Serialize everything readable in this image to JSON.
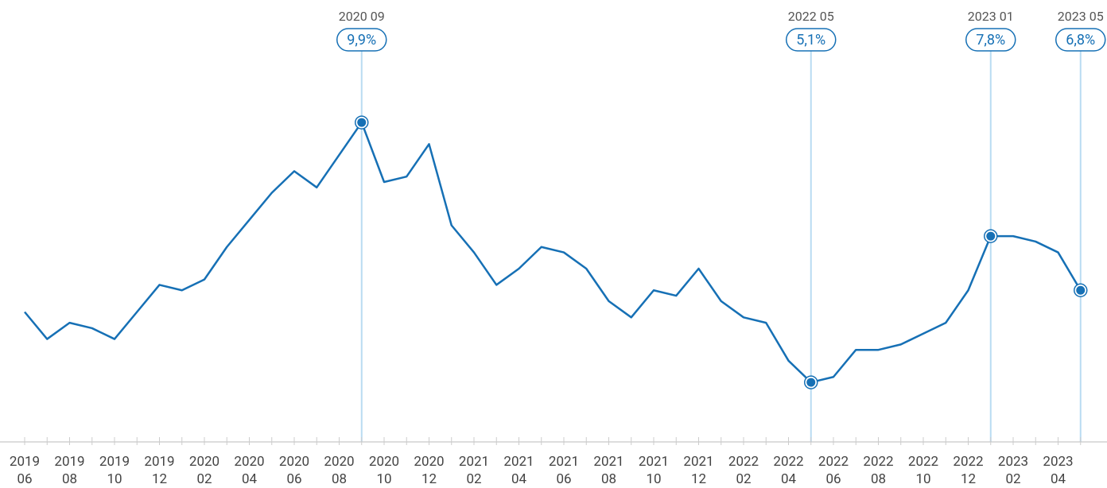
{
  "chart_data": {
    "type": "line",
    "categories": [
      "2019 06",
      null,
      "2019 08",
      null,
      "2019 10",
      null,
      "2019 12",
      null,
      "2020 02",
      null,
      "2020 04",
      null,
      "2020 06",
      null,
      "2020 08",
      null,
      "2020 10",
      null,
      "2020 12",
      null,
      "2021 02",
      null,
      "2021 04",
      null,
      "2021 06",
      null,
      "2021 08",
      null,
      "2021 10",
      null,
      "2021 12",
      null,
      "2022 02",
      null,
      "2022 04",
      null,
      "2022 06",
      null,
      "2022 08",
      null,
      "2022 10",
      null,
      "2022 12",
      null,
      "2023 02",
      null,
      "2023 04",
      null
    ],
    "highlight_dates": [
      null,
      null,
      null,
      null,
      null,
      null,
      null,
      null,
      null,
      null,
      null,
      null,
      null,
      null,
      null,
      "2020 09",
      null,
      null,
      null,
      null,
      null,
      null,
      null,
      null,
      null,
      null,
      null,
      null,
      null,
      null,
      null,
      null,
      null,
      null,
      null,
      "2022 05",
      null,
      null,
      null,
      null,
      null,
      null,
      null,
      "2023 01",
      null,
      null,
      null,
      "2023 05"
    ],
    "series": [
      {
        "name": null,
        "color": "#1670b5",
        "values": [
          6.4,
          5.9,
          6.2,
          6.1,
          5.9,
          6.4,
          6.9,
          6.8,
          7.0,
          7.6,
          8.1,
          8.6,
          9.0,
          8.7,
          9.3,
          9.9,
          8.8,
          8.9,
          9.5,
          8.0,
          7.5,
          6.9,
          7.2,
          7.6,
          7.5,
          7.2,
          6.6,
          6.3,
          6.8,
          6.7,
          7.2,
          6.6,
          6.3,
          6.2,
          5.5,
          5.1,
          5.2,
          5.7,
          5.7,
          5.8,
          6.0,
          6.2,
          6.8,
          7.8,
          7.8,
          7.7,
          7.5,
          6.8
        ],
        "value_labels": [
          null,
          null,
          null,
          null,
          null,
          null,
          null,
          null,
          null,
          null,
          null,
          null,
          null,
          null,
          null,
          "9,9%",
          null,
          null,
          null,
          null,
          null,
          null,
          null,
          null,
          null,
          null,
          null,
          null,
          null,
          null,
          null,
          null,
          null,
          null,
          null,
          "5,1%",
          null,
          null,
          null,
          null,
          null,
          null,
          null,
          "7,8%",
          null,
          null,
          null,
          "6,8%"
        ]
      }
    ],
    "ylim": [
      4,
      12
    ],
    "highlight_color": "#b9dcf2"
  }
}
